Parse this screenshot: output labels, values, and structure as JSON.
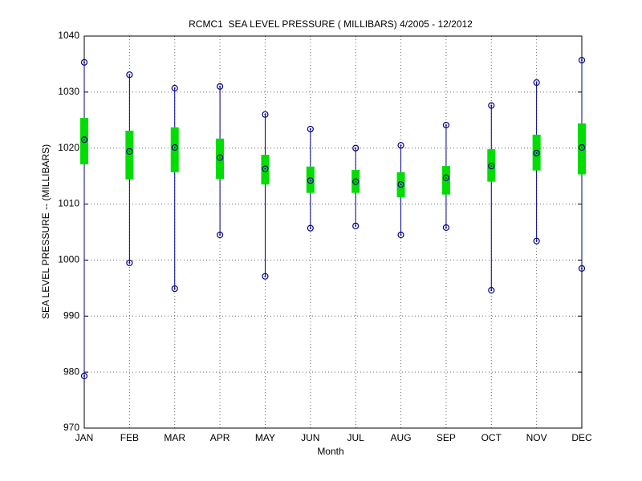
{
  "chart_data": {
    "type": "range",
    "title": "RCMC1  SEA LEVEL PRESSURE ( MILLIBARS) 4/2005 - 12/2012",
    "xlabel": "Month",
    "ylabel": "SEA LEVEL PRESSURE -- (MILLIBARS)",
    "categories": [
      "JAN",
      "FEB",
      "MAR",
      "APR",
      "MAY",
      "JUN",
      "JUL",
      "AUG",
      "SEP",
      "OCT",
      "NOV",
      "DEC"
    ],
    "max": [
      1035.3,
      1033.1,
      1030.7,
      1031.0,
      1026.0,
      1023.4,
      1020.0,
      1020.5,
      1024.1,
      1027.6,
      1031.7,
      1035.7
    ],
    "mean": [
      1021.5,
      1019.4,
      1020.1,
      1018.3,
      1016.3,
      1014.2,
      1014.0,
      1013.5,
      1014.7,
      1016.8,
      1019.1,
      1020.1
    ],
    "min": [
      979.3,
      999.5,
      994.9,
      1004.5,
      997.1,
      1005.7,
      1006.1,
      1004.5,
      1005.8,
      994.6,
      1003.4,
      998.5
    ],
    "upper": [
      1025.4,
      1023.1,
      1023.7,
      1021.7,
      1018.8,
      1016.7,
      1016.1,
      1015.7,
      1016.8,
      1019.8,
      1022.4,
      1024.4
    ],
    "lower": [
      1017.1,
      1014.4,
      1015.7,
      1014.5,
      1013.5,
      1012.0,
      1012.0,
      1011.2,
      1011.7,
      1014.0,
      1016.0,
      1015.3
    ],
    "line_color": "#00008b",
    "box_color": "#00dd00",
    "ylim": [
      970,
      1040
    ],
    "yticks": [
      970,
      980,
      990,
      1000,
      1010,
      1020,
      1030,
      1040
    ],
    "grid": true
  }
}
